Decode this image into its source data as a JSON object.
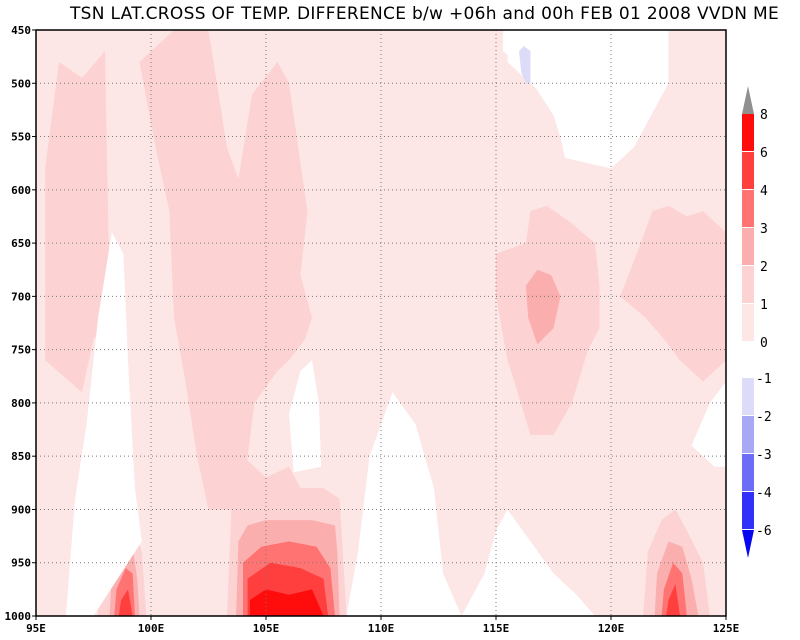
{
  "title": "TSN LAT.CROSS OF TEMP. DIFFERENCE b/w +06h and 00h FEB 01 2008 VVDN ME",
  "chart_data": {
    "type": "filled-contour",
    "title": "TSN LAT.CROSS OF TEMP. DIFFERENCE b/w +06h and 00h FEB 01 2008 VVDN ME",
    "x_axis": {
      "range": [
        95,
        125
      ],
      "ticks": [
        "95E",
        "100E",
        "105E",
        "110E",
        "115E",
        "120E",
        "125E"
      ],
      "tick_values": [
        95,
        100,
        105,
        110,
        115,
        120,
        125
      ]
    },
    "y_axis": {
      "range": [
        1000,
        450
      ],
      "ticks": [
        "450",
        "500",
        "550",
        "600",
        "650",
        "700",
        "750",
        "800",
        "850",
        "900",
        "950",
        "1000"
      ],
      "tick_values": [
        450,
        500,
        550,
        600,
        650,
        700,
        750,
        800,
        850,
        900,
        950,
        1000
      ]
    },
    "grid": true,
    "colorbar_positive": [
      {
        "label": "0",
        "color": "#fde6e6"
      },
      {
        "label": "1",
        "color": "#fcd2d2"
      },
      {
        "label": "2",
        "color": "#fbaeae"
      },
      {
        "label": "3",
        "color": "#ff7373"
      },
      {
        "label": "4",
        "color": "#ff3e3e"
      },
      {
        "label": "6",
        "color": "#ff0d0d"
      },
      {
        "label": "8",
        "color": "#909090"
      }
    ],
    "colorbar_negative": [
      {
        "label": "-1",
        "color": "#dcdcf8"
      },
      {
        "label": "-2",
        "color": "#a8a8f6"
      },
      {
        "label": "-3",
        "color": "#6c6cf6"
      },
      {
        "label": "-4",
        "color": "#3030f8"
      },
      {
        "label": "-6",
        "color": "#0808f0"
      }
    ],
    "regions": [
      {
        "name": "zone-0to1-upper-left",
        "level": "0-1",
        "color": "#fde6e6",
        "points": [
          [
            95,
            450
          ],
          [
            108.4,
            450
          ],
          [
            108.4,
            500
          ],
          [
            110,
            500
          ],
          [
            110,
            700
          ],
          [
            95,
            700
          ]
        ]
      },
      {
        "name": "zone-0to1-upper-middle",
        "level": "0-1",
        "color": "#fde6e6",
        "points": [
          [
            108.4,
            450
          ],
          [
            115.5,
            450
          ],
          [
            115.5,
            480
          ],
          [
            117.5,
            520
          ],
          [
            118,
            570
          ],
          [
            120,
            580
          ],
          [
            121,
            560
          ],
          [
            122.5,
            500
          ],
          [
            122.5,
            450
          ],
          [
            125,
            450
          ],
          [
            125,
            1000
          ],
          [
            95,
            1000
          ],
          [
            95,
            700
          ]
        ]
      },
      {
        "name": "zone-1to2-left",
        "level": "1-2",
        "color": "#fcd2d2",
        "points": [
          [
            95.4,
            580
          ],
          [
            96,
            480
          ],
          [
            97,
            495
          ],
          [
            98,
            470
          ],
          [
            98.2,
            700
          ],
          [
            98.4,
            720
          ],
          [
            97.5,
            740
          ],
          [
            97,
            790
          ],
          [
            95.4,
            760
          ]
        ]
      },
      {
        "name": "zone-1to2-center",
        "level": "1-2",
        "color": "#fcd2d2",
        "points": [
          [
            99.5,
            480
          ],
          [
            101,
            450
          ],
          [
            102.5,
            450
          ],
          [
            103.3,
            560
          ],
          [
            103.8,
            590
          ],
          [
            104.4,
            510
          ],
          [
            105.5,
            480
          ],
          [
            106,
            500
          ],
          [
            106.8,
            620
          ],
          [
            106.5,
            680
          ],
          [
            107,
            720
          ],
          [
            106.7,
            740
          ],
          [
            106,
            760
          ],
          [
            105.5,
            770
          ],
          [
            104.5,
            800
          ],
          [
            104.2,
            850
          ],
          [
            104,
            900
          ],
          [
            103.5,
            900
          ],
          [
            102.5,
            900
          ],
          [
            102,
            850
          ],
          [
            101.5,
            780
          ],
          [
            101,
            720
          ],
          [
            100.8,
            620
          ],
          [
            100.2,
            560
          ]
        ]
      },
      {
        "name": "zone-1to2-right-plume",
        "level": "1-2",
        "color": "#fcd2d2",
        "points": [
          [
            115,
            660
          ],
          [
            116.3,
            650
          ],
          [
            116.5,
            620
          ],
          [
            117.2,
            615
          ],
          [
            118.2,
            630
          ],
          [
            119.3,
            650
          ],
          [
            119.5,
            690
          ],
          [
            119.5,
            730
          ],
          [
            119,
            750
          ],
          [
            118.3,
            800
          ],
          [
            117.5,
            830
          ],
          [
            116.5,
            830
          ],
          [
            115.8,
            780
          ],
          [
            115.5,
            760
          ],
          [
            115,
            700
          ]
        ]
      },
      {
        "name": "zone-1to2-far-right",
        "level": "1-2",
        "color": "#fcd2d2",
        "points": [
          [
            120.4,
            700
          ],
          [
            121.3,
            650
          ],
          [
            121.8,
            620
          ],
          [
            122.5,
            615
          ],
          [
            123.3,
            625
          ],
          [
            124,
            620
          ],
          [
            125,
            640
          ],
          [
            125,
            760
          ],
          [
            124,
            780
          ],
          [
            123,
            760
          ],
          [
            122.3,
            740
          ],
          [
            121.5,
            720
          ]
        ]
      },
      {
        "name": "zone-1to2-bottom-center",
        "level": "1-2",
        "color": "#fcd2d2",
        "points": [
          [
            103.5,
            900
          ],
          [
            104,
            850
          ],
          [
            105,
            870
          ],
          [
            106,
            860
          ],
          [
            106.5,
            880
          ],
          [
            107.5,
            880
          ],
          [
            108.2,
            890
          ],
          [
            108.5,
            1000
          ],
          [
            103.3,
            1000
          ]
        ]
      },
      {
        "name": "zone-1to2-bottom-left",
        "level": "1-2",
        "color": "#fcd2d2",
        "points": [
          [
            97.5,
            940
          ],
          [
            98,
            910
          ],
          [
            98.7,
            900
          ],
          [
            99.2,
            910
          ],
          [
            99.6,
            940
          ],
          [
            99.8,
            1000
          ],
          [
            97.7,
            1000
          ]
        ]
      },
      {
        "name": "zone-1to2-bottom-right",
        "level": "1-2",
        "color": "#fcd2d2",
        "points": [
          [
            121.6,
            940
          ],
          [
            122.2,
            910
          ],
          [
            122.8,
            900
          ],
          [
            123.3,
            920
          ],
          [
            124,
            950
          ],
          [
            124.3,
            1000
          ],
          [
            121.4,
            1000
          ]
        ]
      },
      {
        "name": "zone-2to3-center-right",
        "level": "2-3",
        "color": "#fbaeae",
        "points": [
          [
            116.3,
            690
          ],
          [
            116.8,
            675
          ],
          [
            117.4,
            680
          ],
          [
            117.8,
            700
          ],
          [
            117.5,
            730
          ],
          [
            116.8,
            745
          ],
          [
            116.4,
            720
          ]
        ]
      },
      {
        "name": "zone-2to3-bottom-center",
        "level": "2-3",
        "color": "#fbaeae",
        "points": [
          [
            103.8,
            930
          ],
          [
            104.2,
            915
          ],
          [
            105,
            910
          ],
          [
            106,
            910
          ],
          [
            107,
            910
          ],
          [
            108,
            915
          ],
          [
            108.1,
            940
          ],
          [
            108.2,
            1000
          ],
          [
            103.7,
            1000
          ]
        ]
      },
      {
        "name": "zone-2to3-bottom-left",
        "level": "2-3",
        "color": "#fbaeae",
        "points": [
          [
            98.3,
            960
          ],
          [
            98.7,
            930
          ],
          [
            99.2,
            935
          ],
          [
            99.4,
            965
          ],
          [
            99.5,
            1000
          ],
          [
            98.2,
            1000
          ]
        ]
      },
      {
        "name": "zone-2to3-bottom-right",
        "level": "2-3",
        "color": "#fbaeae",
        "points": [
          [
            122,
            960
          ],
          [
            122.5,
            930
          ],
          [
            123.1,
            935
          ],
          [
            123.5,
            965
          ],
          [
            123.8,
            1000
          ],
          [
            121.9,
            1000
          ]
        ]
      },
      {
        "name": "zone-3to4-bottom-center",
        "level": "3-4",
        "color": "#ff7373",
        "points": [
          [
            104,
            950
          ],
          [
            104.8,
            935
          ],
          [
            106,
            930
          ],
          [
            107.2,
            935
          ],
          [
            107.8,
            955
          ],
          [
            108,
            1000
          ],
          [
            104,
            1000
          ]
        ]
      },
      {
        "name": "zone-3to4-bottom-left",
        "level": "3-4",
        "color": "#ff7373",
        "points": [
          [
            98.5,
            975
          ],
          [
            98.9,
            955
          ],
          [
            99.2,
            960
          ],
          [
            99.3,
            1000
          ],
          [
            98.4,
            1000
          ]
        ]
      },
      {
        "name": "zone-3to4-bottom-right",
        "level": "3-4",
        "color": "#ff7373",
        "points": [
          [
            122.3,
            975
          ],
          [
            122.7,
            950
          ],
          [
            123.1,
            960
          ],
          [
            123.3,
            1000
          ],
          [
            122.2,
            1000
          ]
        ]
      },
      {
        "name": "zone-4to6-bottom-center",
        "level": "4-6",
        "color": "#ff3e3e",
        "points": [
          [
            104.2,
            965
          ],
          [
            105.2,
            950
          ],
          [
            106.5,
            955
          ],
          [
            107.5,
            965
          ],
          [
            107.7,
            1000
          ],
          [
            104.2,
            1000
          ]
        ]
      },
      {
        "name": "zone-4to6-bottom-left",
        "level": "4-6",
        "color": "#ff3e3e",
        "points": [
          [
            98.7,
            985
          ],
          [
            99,
            975
          ],
          [
            99.2,
            1000
          ],
          [
            98.6,
            1000
          ]
        ]
      },
      {
        "name": "zone-4to6-bottom-right",
        "level": "4-6",
        "color": "#ff3e3e",
        "points": [
          [
            122.5,
            985
          ],
          [
            122.8,
            970
          ],
          [
            123,
            1000
          ],
          [
            122.4,
            1000
          ]
        ]
      },
      {
        "name": "zone-6to8-bottom-center",
        "level": "6-8",
        "color": "#ff0d0d",
        "points": [
          [
            104.3,
            985
          ],
          [
            105,
            975
          ],
          [
            106,
            980
          ],
          [
            107,
            975
          ],
          [
            107.5,
            1000
          ],
          [
            104.3,
            1000
          ]
        ]
      },
      {
        "name": "zone-white-upper-right",
        "level": "<0",
        "color": "#ffffff",
        "points": [
          [
            115.3,
            450
          ],
          [
            122.3,
            450
          ],
          [
            122.3,
            480
          ],
          [
            121.5,
            530
          ],
          [
            120,
            575
          ],
          [
            118,
            565
          ],
          [
            117.5,
            530
          ],
          [
            116,
            480
          ],
          [
            115.3,
            470
          ]
        ]
      },
      {
        "name": "zone-white-left-vertical",
        "level": "<0",
        "color": "#ffffff",
        "points": [
          [
            96.3,
            1000
          ],
          [
            96.7,
            890
          ],
          [
            97.2,
            820
          ],
          [
            97.7,
            720
          ],
          [
            98.3,
            640
          ],
          [
            98.8,
            660
          ],
          [
            99,
            760
          ],
          [
            99.3,
            880
          ],
          [
            99.6,
            930
          ],
          [
            97.5,
            1000
          ]
        ]
      },
      {
        "name": "zone-white-center",
        "level": "<0",
        "color": "#ffffff",
        "points": [
          [
            106,
            810
          ],
          [
            106.5,
            770
          ],
          [
            107,
            760
          ],
          [
            107.3,
            800
          ],
          [
            107.4,
            860
          ],
          [
            106.2,
            865
          ]
        ]
      },
      {
        "name": "zone-white-bottom-center-right",
        "level": "<0",
        "color": "#ffffff",
        "points": [
          [
            108.5,
            1000
          ],
          [
            109,
            940
          ],
          [
            109.5,
            850
          ],
          [
            110.5,
            790
          ],
          [
            111.5,
            820
          ],
          [
            112.3,
            880
          ],
          [
            112.7,
            960
          ],
          [
            113.5,
            1000
          ]
        ]
      },
      {
        "name": "zone-white-bottom-right",
        "level": "<0",
        "color": "#ffffff",
        "points": [
          [
            113.5,
            1000
          ],
          [
            114.5,
            960
          ],
          [
            115,
            920
          ],
          [
            115.5,
            900
          ],
          [
            116.5,
            930
          ],
          [
            117.5,
            960
          ],
          [
            118.5,
            980
          ],
          [
            119.3,
            1000
          ]
        ]
      },
      {
        "name": "zone-white-right-strip",
        "level": "<0",
        "color": "#ffffff",
        "points": [
          [
            123.5,
            840
          ],
          [
            124.3,
            800
          ],
          [
            125,
            780
          ],
          [
            125,
            860
          ],
          [
            124.5,
            860
          ]
        ]
      },
      {
        "name": "zone-blue-sliver",
        "level": "-1-0",
        "color": "#dcdcf8",
        "points": [
          [
            116,
            470
          ],
          [
            116.2,
            465
          ],
          [
            116.5,
            470
          ],
          [
            116.5,
            500
          ],
          [
            116.3,
            500
          ],
          [
            116.1,
            490
          ]
        ]
      }
    ]
  }
}
